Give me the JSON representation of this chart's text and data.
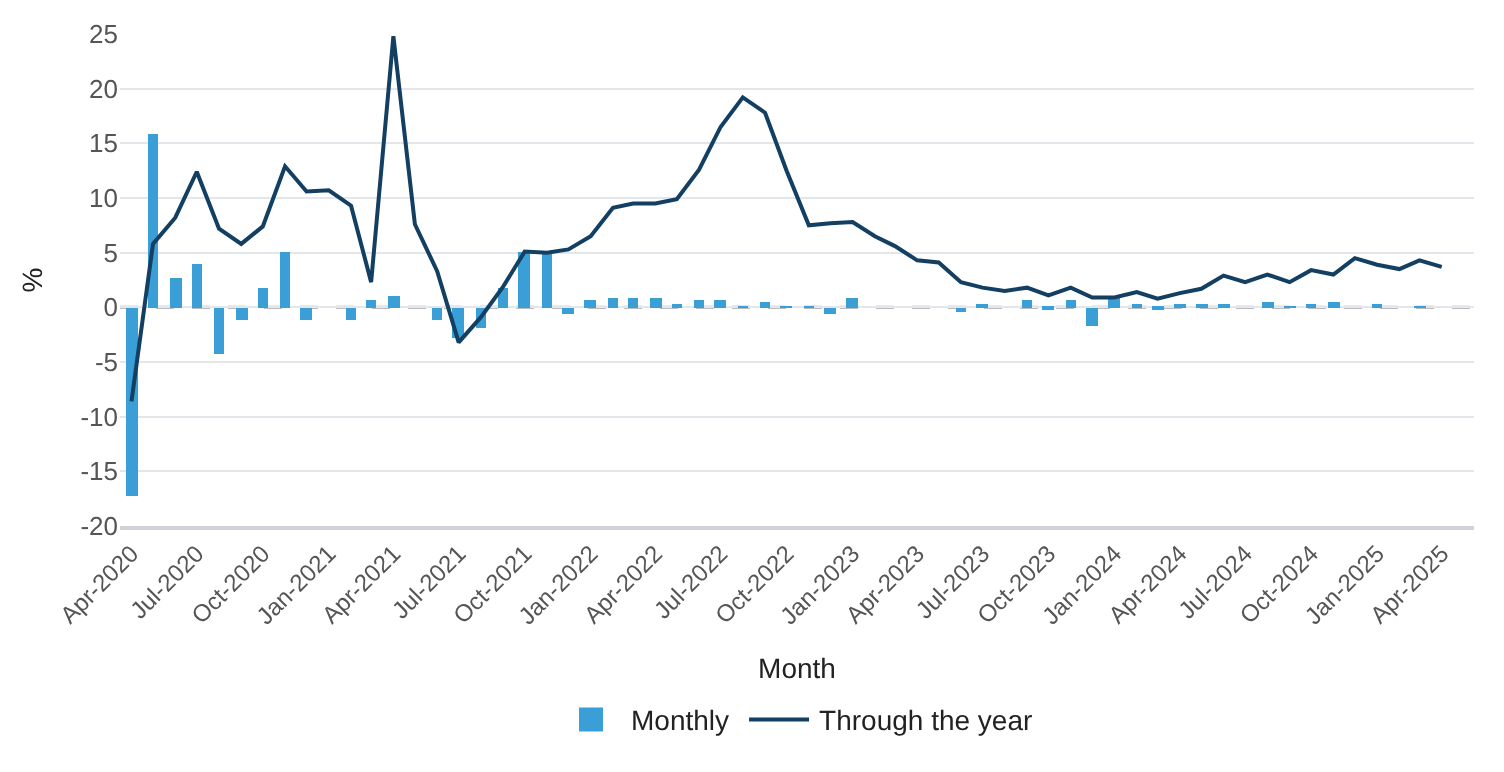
{
  "chart_data": {
    "type": "bar",
    "xlabel": "Month",
    "ylabel": "%",
    "x": [
      "2020-04",
      "2020-05",
      "2020-06",
      "2020-07",
      "2020-08",
      "2020-09",
      "2020-10",
      "2020-11",
      "2020-12",
      "2021-01",
      "2021-02",
      "2021-03",
      "2021-04",
      "2021-05",
      "2021-06",
      "2021-07",
      "2021-08",
      "2021-09",
      "2021-10",
      "2021-11",
      "2021-12",
      "2022-01",
      "2022-02",
      "2022-03",
      "2022-04",
      "2022-05",
      "2022-06",
      "2022-07",
      "2022-08",
      "2022-09",
      "2022-10",
      "2022-11",
      "2022-12",
      "2023-01",
      "2023-02",
      "2023-03",
      "2023-04",
      "2023-05",
      "2023-06",
      "2023-07",
      "2023-08",
      "2023-09",
      "2023-10",
      "2023-11",
      "2023-12",
      "2024-01",
      "2024-02",
      "2024-03",
      "2024-04",
      "2024-05",
      "2024-06",
      "2024-07",
      "2024-08",
      "2024-09",
      "2024-10",
      "2024-11",
      "2024-12",
      "2025-01",
      "2025-02",
      "2025-03",
      "2025-04"
    ],
    "series": [
      {
        "name": "Monthly",
        "color": "#3a9fd6",
        "values": [
          -17.2,
          15.9,
          2.6,
          3.9,
          -4.2,
          -1.2,
          1.7,
          5.0,
          -1.2,
          0,
          -1.2,
          0.7,
          1.0,
          0,
          -1.2,
          -2.8,
          -1.8,
          1.7,
          5.0,
          5.0,
          -0.6,
          0.7,
          0.8,
          0.8,
          0.8,
          0.2,
          0.7,
          0.7,
          0.1,
          0.4,
          0.1,
          0.1,
          -0.6,
          0.9,
          0,
          0,
          0,
          0,
          -0.5,
          0.2,
          0,
          0.7,
          -0.3,
          0.7,
          -1.7,
          0.8,
          0.2,
          -0.1,
          0.2,
          0.3,
          0.2,
          0,
          0.5,
          0.1,
          0.2,
          0.5,
          0,
          0.2,
          0,
          0.1,
          0
        ]
      },
      {
        "name": "Through the year",
        "type": "line",
        "color": "#133f63",
        "values": [
          -8.6,
          5.8,
          8.2,
          12.4,
          7.2,
          5.8,
          7.4,
          12.9,
          10.6,
          10.7,
          9.3,
          2.3,
          24.8,
          7.6,
          3.3,
          -3.2,
          -0.9,
          1.9,
          5.1,
          5.0,
          5.3,
          6.5,
          9.1,
          9.5,
          9.5,
          9.9,
          12.6,
          16.5,
          19.2,
          17.8,
          12.5,
          7.5,
          7.7,
          7.8,
          6.5,
          5.6,
          4.3,
          4.1,
          2.3,
          1.8,
          1.5,
          1.8,
          1.1,
          1.8,
          0.9,
          0.9,
          1.4,
          0.8,
          1.3,
          1.7,
          2.9,
          2.3,
          3.0,
          2.3,
          3.4,
          3.0,
          4.5,
          3.9,
          3.5,
          4.3,
          3.7
        ]
      }
    ],
    "xlim": [
      "2020-03-16",
      "2025-05-16"
    ],
    "xticks": [
      {
        "value": "2020-04",
        "label": "Apr-2020"
      },
      {
        "value": "2020-07",
        "label": "Jul-2020"
      },
      {
        "value": "2020-10",
        "label": "Oct-2020"
      },
      {
        "value": "2021-01",
        "label": "Jan-2021"
      },
      {
        "value": "2021-04",
        "label": "Apr-2021"
      },
      {
        "value": "2021-07",
        "label": "Jul-2021"
      },
      {
        "value": "2021-10",
        "label": "Oct-2021"
      },
      {
        "value": "2022-01",
        "label": "Jan-2022"
      },
      {
        "value": "2022-04",
        "label": "Apr-2022"
      },
      {
        "value": "2022-07",
        "label": "Jul-2022"
      },
      {
        "value": "2022-10",
        "label": "Oct-2022"
      },
      {
        "value": "2023-01",
        "label": "Jan-2023"
      },
      {
        "value": "2023-04",
        "label": "Apr-2023"
      },
      {
        "value": "2023-07",
        "label": "Jul-2023"
      },
      {
        "value": "2023-10",
        "label": "Oct-2023"
      },
      {
        "value": "2024-01",
        "label": "Jan-2024"
      },
      {
        "value": "2024-04",
        "label": "Apr-2024"
      },
      {
        "value": "2024-07",
        "label": "Jul-2024"
      },
      {
        "value": "2024-10",
        "label": "Oct-2024"
      },
      {
        "value": "2025-01",
        "label": "Jan-2025"
      },
      {
        "value": "2025-04",
        "label": "Apr-2025"
      }
    ],
    "ylim": [
      -20,
      25
    ],
    "yticks": [
      -20,
      -15,
      -10,
      -5,
      0,
      5,
      10,
      15,
      20,
      25
    ],
    "ref_lines": [
      {
        "axis": "y",
        "value": 0,
        "color": "#a6a6a6",
        "line_style": "dashed"
      }
    ],
    "grid": "y",
    "legend": "bottom",
    "line_style": "solid",
    "marker": "none"
  }
}
